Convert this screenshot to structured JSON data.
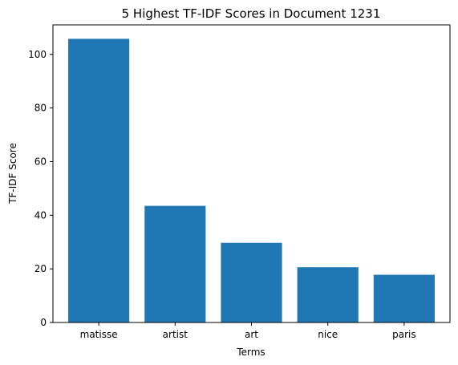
{
  "chart_data": {
    "type": "bar",
    "title": "5 Highest TF-IDF Scores in Document 1231",
    "xlabel": "Terms",
    "ylabel": "TF-IDF Score",
    "categories": [
      "matisse",
      "artist",
      "art",
      "nice",
      "paris"
    ],
    "values": [
      105.8,
      43.5,
      29.7,
      20.6,
      17.8
    ],
    "ylim": [
      0,
      111
    ],
    "yticks": [
      0,
      20,
      40,
      60,
      80,
      100
    ],
    "grid": false,
    "bar_color": "#1f77b4"
  }
}
